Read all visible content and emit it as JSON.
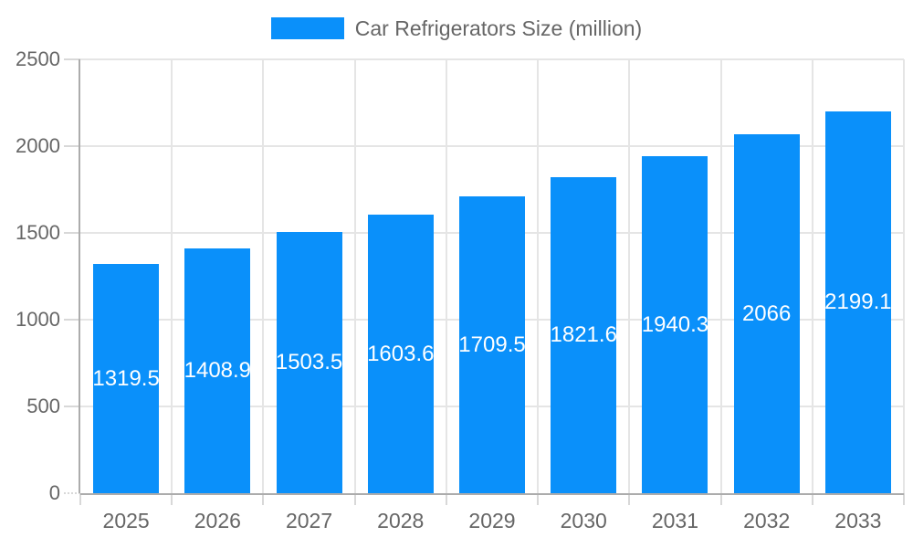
{
  "legend": {
    "label": "Car Refrigerators Size (million)"
  },
  "chart_data": {
    "type": "bar",
    "title": "Car Refrigerators Size (million)",
    "categories": [
      "2025",
      "2026",
      "2027",
      "2028",
      "2029",
      "2030",
      "2031",
      "2032",
      "2033"
    ],
    "values": [
      1319.5,
      1408.9,
      1503.5,
      1603.6,
      1709.5,
      1821.6,
      1940.3,
      2066,
      2199.1
    ],
    "value_labels": [
      "1319.5",
      "1408.9",
      "1503.5",
      "1603.6",
      "1709.5",
      "1821.6",
      "1940.3",
      "2066",
      "2199.1"
    ],
    "series_name": "Car Refrigerators Size (million)",
    "xlabel": "",
    "ylabel": "",
    "ylim": [
      0,
      2500
    ],
    "yticks": [
      0,
      500,
      1000,
      1500,
      2000,
      2500
    ],
    "grid": true,
    "legend_position": "top",
    "bar_labels_inside": true
  },
  "colors": {
    "bar": "#0A90FA",
    "grid": "#E5E5E5",
    "axis": "#ACACAC",
    "tick": "#D8D8D8",
    "text": "#666666",
    "value_label": "#FFFFFF",
    "background": "#FFFFFF"
  }
}
